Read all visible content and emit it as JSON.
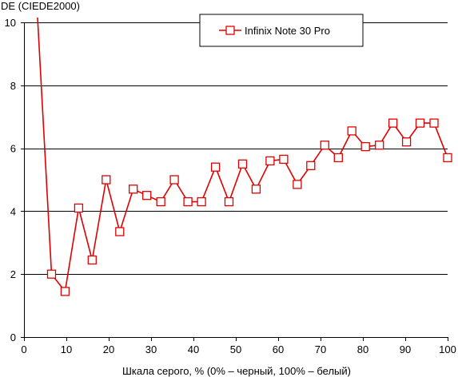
{
  "chart_data": {
    "type": "line",
    "ylabel": "DE (CIEDE2000)",
    "xlabel": "Шкала серого, % (0% – черный, 100% – белый)",
    "xlim": [
      0,
      100
    ],
    "ylim": [
      0,
      10
    ],
    "x_ticks": [
      0,
      10,
      20,
      30,
      40,
      50,
      60,
      70,
      80,
      90,
      100
    ],
    "y_ticks": [
      0,
      2,
      4,
      6,
      8,
      10
    ],
    "grid": "horizontal",
    "legend_position": "top-right",
    "colors": {
      "series": "#e00000",
      "grid": "#000000",
      "background": "#ffffff"
    },
    "series": [
      {
        "name": "Infinix Note 30 Pro",
        "x": [
          3.2,
          6.5,
          9.7,
          12.9,
          16.1,
          19.4,
          22.6,
          25.8,
          29.0,
          32.3,
          35.5,
          38.7,
          41.9,
          45.2,
          48.4,
          51.6,
          54.8,
          58.1,
          61.3,
          64.5,
          67.7,
          71.0,
          74.2,
          77.4,
          80.6,
          83.9,
          87.1,
          90.3,
          93.5,
          96.8,
          100
        ],
        "y": [
          10.2,
          2.0,
          1.45,
          4.1,
          2.45,
          5.0,
          3.35,
          4.7,
          4.5,
          4.3,
          5.0,
          4.3,
          4.3,
          5.4,
          4.3,
          5.5,
          4.7,
          5.6,
          5.65,
          4.85,
          5.45,
          6.1,
          5.7,
          6.55,
          6.05,
          6.1,
          6.8,
          6.2,
          6.8,
          6.8,
          5.7
        ],
        "markers": [
          false,
          true,
          true,
          true,
          true,
          true,
          true,
          true,
          true,
          true,
          true,
          true,
          true,
          true,
          true,
          true,
          true,
          true,
          true,
          true,
          true,
          true,
          true,
          true,
          true,
          true,
          true,
          true,
          true,
          true,
          true
        ]
      }
    ]
  }
}
